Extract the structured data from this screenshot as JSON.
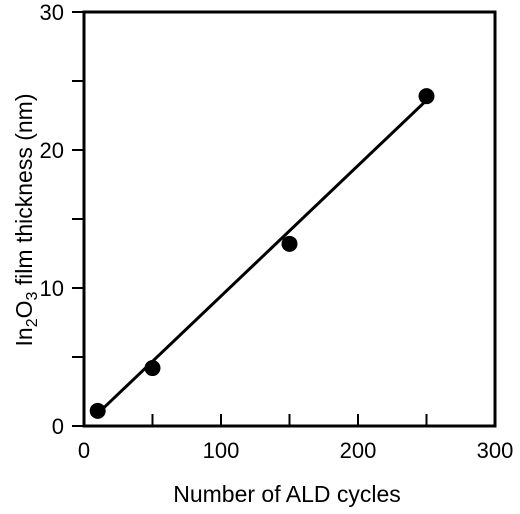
{
  "chart_data": {
    "type": "scatter",
    "xlabel": "Number of ALD cycles",
    "ylabel_parts": [
      "In",
      "2",
      "O",
      "3",
      " film thickness (nm)"
    ],
    "xlim": [
      0,
      300
    ],
    "ylim": [
      0,
      30
    ],
    "x_ticks": [
      0,
      100,
      200,
      300
    ],
    "x_minor_ticks": [
      50,
      150,
      250
    ],
    "y_ticks": [
      0,
      10,
      20,
      30
    ],
    "y_minor_ticks": [
      5,
      15,
      25
    ],
    "grid": false,
    "series": [
      {
        "points": [
          {
            "x": 10,
            "y": 1.1
          },
          {
            "x": 50,
            "y": 4.2
          },
          {
            "x": 150,
            "y": 13.2
          },
          {
            "x": 250,
            "y": 23.9
          }
        ],
        "color": "#000000"
      }
    ],
    "fit_line": {
      "x": [
        10,
        250
      ],
      "y": [
        0.9,
        23.6
      ],
      "color": "#000000"
    }
  }
}
